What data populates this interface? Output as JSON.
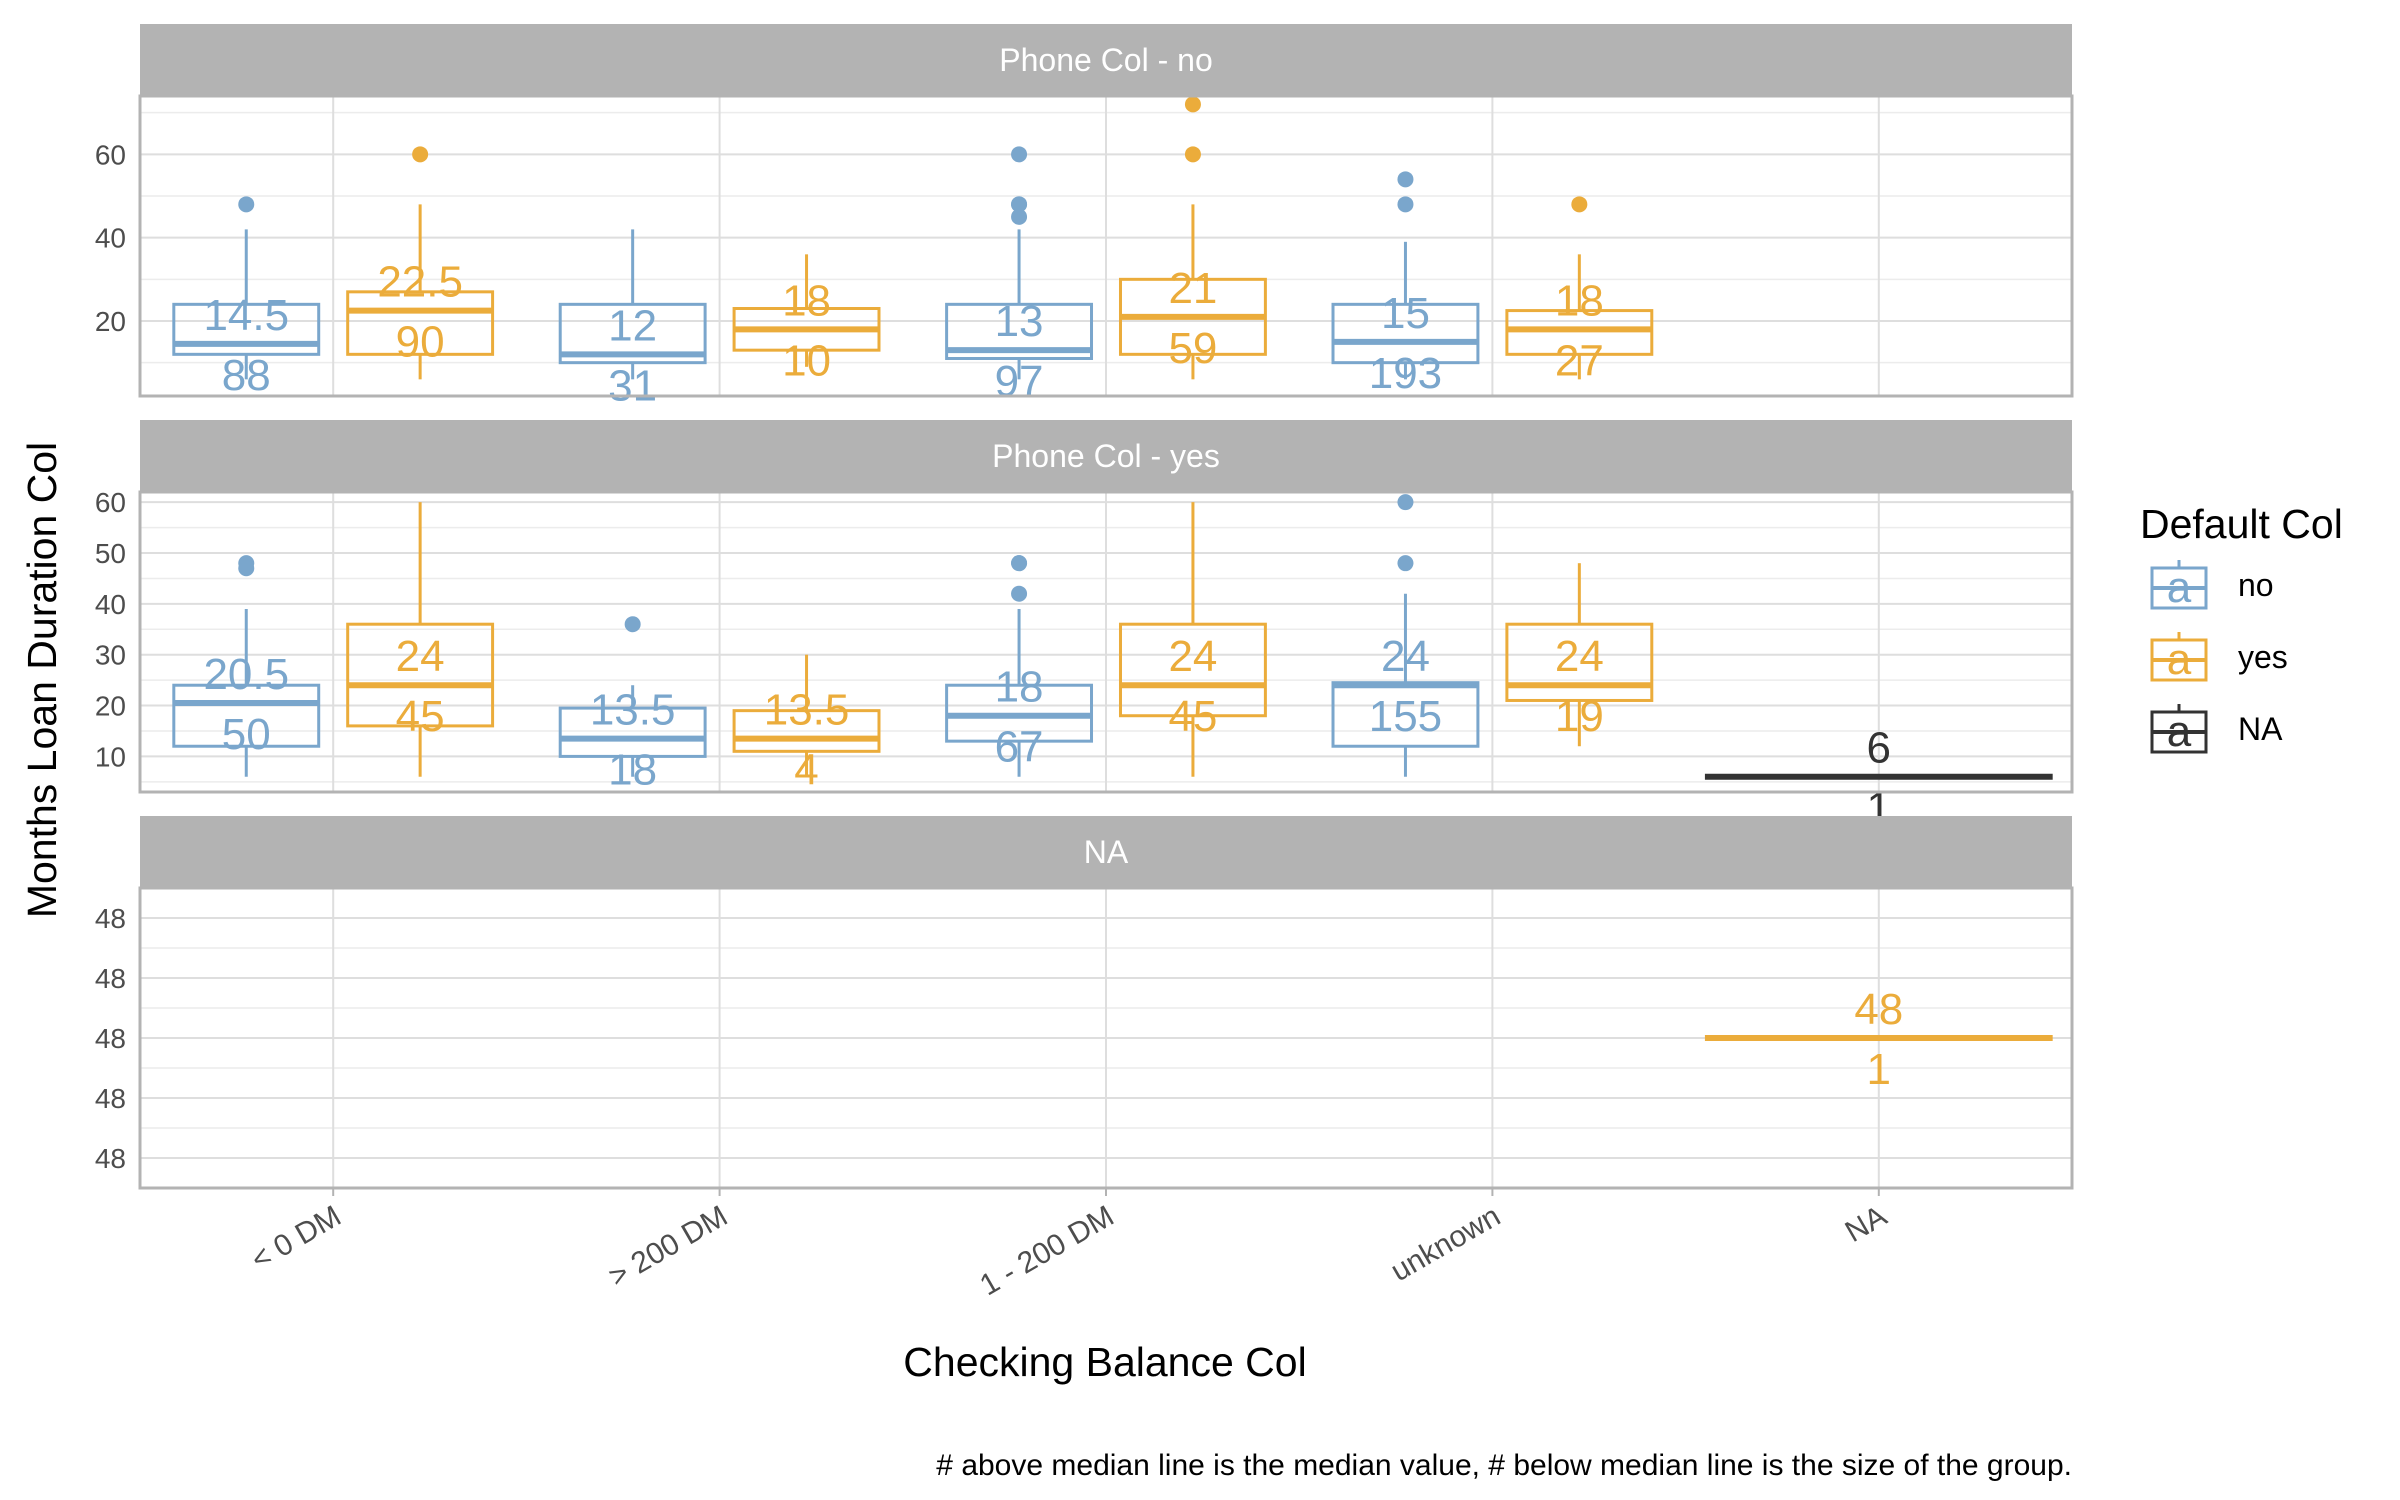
{
  "chart_data": {
    "type": "box",
    "xlabel": "Checking Balance Col",
    "ylabel": "Months Loan Duration Col",
    "caption": "# above median line is the median value, # below median line is the size of the group.",
    "categories": [
      "< 0 DM",
      "> 200 DM",
      "1 - 200 DM",
      "unknown",
      "NA"
    ],
    "legend": {
      "title": "Default Col",
      "position": "right",
      "key_glyph": "a",
      "entries": [
        {
          "label": "no",
          "color": "#7aa6cc"
        },
        {
          "label": "yes",
          "color": "#ebac3b"
        },
        {
          "label": "NA",
          "color": "#333333"
        }
      ]
    },
    "grid": true,
    "panels": [
      {
        "strip": "Phone Col - no",
        "ylim": [
          2,
          74
        ],
        "yticks": [
          20,
          40,
          60
        ],
        "boxes": [
          {
            "category": "< 0 DM",
            "group": "no",
            "q1": 12,
            "median": 14.5,
            "q3": 24,
            "whisker_low": 6,
            "whisker_high": 42,
            "outliers": [
              48
            ],
            "median_label": "14.5",
            "n_label": "88"
          },
          {
            "category": "< 0 DM",
            "group": "yes",
            "q1": 12,
            "median": 22.5,
            "q3": 27,
            "whisker_low": 6,
            "whisker_high": 48,
            "outliers": [
              60
            ],
            "median_label": "22.5",
            "n_label": "90"
          },
          {
            "category": "> 200 DM",
            "group": "no",
            "q1": 10,
            "median": 12,
            "q3": 24,
            "whisker_low": 6,
            "whisker_high": 42,
            "outliers": [],
            "median_label": "12",
            "n_label": "31"
          },
          {
            "category": "> 200 DM",
            "group": "yes",
            "q1": 13,
            "median": 18,
            "q3": 23,
            "whisker_low": 9,
            "whisker_high": 36,
            "outliers": [],
            "median_label": "18",
            "n_label": "10"
          },
          {
            "category": "1 - 200 DM",
            "group": "no",
            "q1": 11,
            "median": 13,
            "q3": 24,
            "whisker_low": 6,
            "whisker_high": 42,
            "outliers": [
              45,
              48,
              48,
              60
            ],
            "median_label": "13",
            "n_label": "97"
          },
          {
            "category": "1 - 200 DM",
            "group": "yes",
            "q1": 12,
            "median": 21,
            "q3": 30,
            "whisker_low": 6,
            "whisker_high": 48,
            "outliers": [
              60,
              72
            ],
            "median_label": "21",
            "n_label": "59"
          },
          {
            "category": "unknown",
            "group": "no",
            "q1": 10,
            "median": 15,
            "q3": 24,
            "whisker_low": 6,
            "whisker_high": 39,
            "outliers": [
              48,
              54
            ],
            "median_label": "15",
            "n_label": "193"
          },
          {
            "category": "unknown",
            "group": "yes",
            "q1": 12,
            "median": 18,
            "q3": 22.5,
            "whisker_low": 6,
            "whisker_high": 36,
            "outliers": [
              48
            ],
            "median_label": "18",
            "n_label": "27"
          }
        ]
      },
      {
        "strip": "Phone Col - yes",
        "ylim": [
          3,
          62
        ],
        "yticks": [
          10,
          20,
          30,
          40,
          50,
          60
        ],
        "boxes": [
          {
            "category": "< 0 DM",
            "group": "no",
            "q1": 12,
            "median": 20.5,
            "q3": 24,
            "whisker_low": 6,
            "whisker_high": 39,
            "outliers": [
              47,
              48
            ],
            "median_label": "20.5",
            "n_label": "50"
          },
          {
            "category": "< 0 DM",
            "group": "yes",
            "q1": 16,
            "median": 24,
            "q3": 36,
            "whisker_low": 6,
            "whisker_high": 60,
            "outliers": [],
            "median_label": "24",
            "n_label": "45"
          },
          {
            "category": "> 200 DM",
            "group": "no",
            "q1": 10,
            "median": 13.5,
            "q3": 19.5,
            "whisker_low": 6,
            "whisker_high": 24,
            "outliers": [
              36
            ],
            "median_label": "13.5",
            "n_label": "18"
          },
          {
            "category": "> 200 DM",
            "group": "yes",
            "q1": 11,
            "median": 13.5,
            "q3": 19,
            "whisker_low": 6,
            "whisker_high": 30,
            "outliers": [],
            "median_label": "13.5",
            "n_label": "4"
          },
          {
            "category": "1 - 200 DM",
            "group": "no",
            "q1": 13,
            "median": 18,
            "q3": 24,
            "whisker_low": 6,
            "whisker_high": 39,
            "outliers": [
              42,
              48,
              48
            ],
            "median_label": "18",
            "n_label": "67"
          },
          {
            "category": "1 - 200 DM",
            "group": "yes",
            "q1": 18,
            "median": 24,
            "q3": 36,
            "whisker_low": 6,
            "whisker_high": 60,
            "outliers": [],
            "median_label": "24",
            "n_label": "45"
          },
          {
            "category": "unknown",
            "group": "no",
            "q1": 12,
            "median": 24,
            "q3": 24.5,
            "whisker_low": 6,
            "whisker_high": 42,
            "outliers": [
              48,
              60
            ],
            "median_label": "24",
            "n_label": "155"
          },
          {
            "category": "unknown",
            "group": "yes",
            "q1": 21,
            "median": 24,
            "q3": 36,
            "whisker_low": 12,
            "whisker_high": 48,
            "outliers": [],
            "median_label": "24",
            "n_label": "19"
          },
          {
            "category": "NA",
            "group": "NA",
            "q1": 6,
            "median": 6,
            "q3": 6,
            "whisker_low": 6,
            "whisker_high": 6,
            "outliers": [],
            "median_label": "6",
            "n_label": "1"
          }
        ]
      },
      {
        "strip": "NA",
        "ylim": [
          47.95,
          48.05
        ],
        "yticks": [
          47.96,
          47.98,
          48.0,
          48.02,
          48.04
        ],
        "yticklabels": [
          "48",
          "48",
          "48",
          "48",
          "48"
        ],
        "boxes": [
          {
            "category": "NA",
            "group": "yes",
            "q1": 48,
            "median": 48,
            "q3": 48,
            "whisker_low": 48,
            "whisker_high": 48,
            "outliers": [],
            "median_label": "48",
            "n_label": "1"
          }
        ]
      }
    ]
  }
}
